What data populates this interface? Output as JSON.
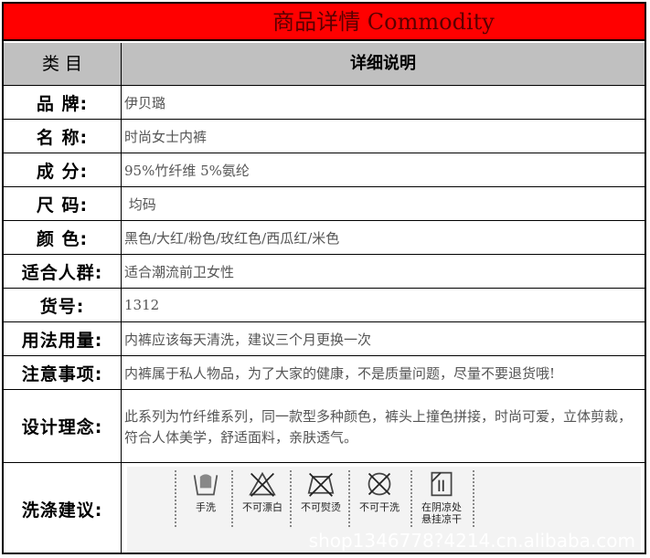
{
  "title": "商品详情 Commodity",
  "header": {
    "category": "类 目",
    "detail": "详细说明"
  },
  "rows": [
    {
      "label": "品 牌:",
      "value": "伊贝璐"
    },
    {
      "label": "名 称:",
      "value": "时尚女士内裤"
    },
    {
      "label": "成 分:",
      "value": "95%竹纤维 5%氨纶"
    },
    {
      "label": "尺 码:",
      "value": " 均码"
    },
    {
      "label": "颜 色:",
      "value": "黑色/大红/粉色/玫红色/西瓜红/米色"
    },
    {
      "label": "适合人群:",
      "value": "适合潮流前卫女性"
    },
    {
      "label": "货号:",
      "value": "1312"
    },
    {
      "label": "用法用量:",
      "value": "内裤应该每天清洗，建议三个月更换一次"
    },
    {
      "label": "注意事项:",
      "value": "内裤属于私人物品，为了大家的健康，不是质量问题，尽量不要退货哦!"
    },
    {
      "label": "设计理念:",
      "value": "此系列为竹纤维系列，同一款型多种颜色，裤头上撞色拼接，时尚可爱，立体剪裁，符合人体美学，舒适面料，亲肤透气。"
    }
  ],
  "care": {
    "label": "洗涤建议:",
    "items": [
      {
        "icon": "hand-wash-icon",
        "text": "手洗"
      },
      {
        "icon": "no-bleach-icon",
        "text": "不可漂白"
      },
      {
        "icon": "no-iron-icon",
        "text": "不可熨烫"
      },
      {
        "icon": "no-dry-clean-icon",
        "text": "不可干洗"
      },
      {
        "icon": "line-dry-shade-icon",
        "text": "在阴凉处",
        "text2": "悬挂凉干"
      }
    ],
    "watermark": "shop1346778?4214.cn.alibaba.com"
  },
  "colors": {
    "title_bg": "#ff0000",
    "title_text": "#5a0000",
    "header_bg": "#c0c0c0"
  }
}
